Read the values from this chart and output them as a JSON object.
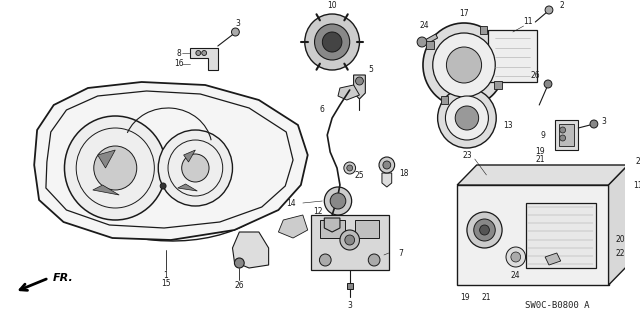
{
  "bg_color": "#ffffff",
  "fig_width": 6.4,
  "fig_height": 3.19,
  "dpi": 100,
  "diagram_code": "SW0C-B0800 A",
  "part_color": "#1a1a1a",
  "hatch_color": "#888888",
  "label_fontsize": 5.5,
  "diagram_code_fontsize": 6.5
}
